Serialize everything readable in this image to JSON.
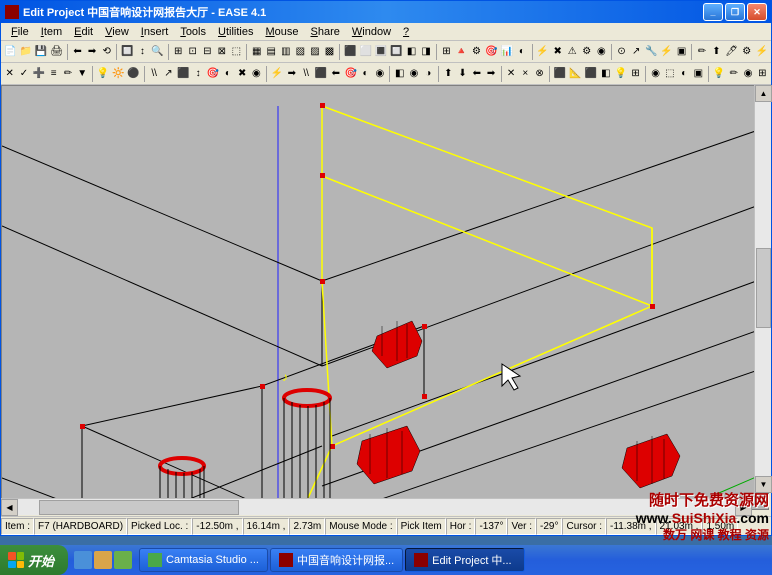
{
  "window": {
    "title": "Edit Project 中国音响设计网报告大厅 - EASE 4.1"
  },
  "menu": {
    "items": [
      "File",
      "Item",
      "Edit",
      "View",
      "Insert",
      "Tools",
      "Utilities",
      "Mouse",
      "Share",
      "Window",
      "?"
    ]
  },
  "status": {
    "item_label": "Item :",
    "item_value": "F7 (HARDBOARD)",
    "picked_label": "Picked Loc. :",
    "picked_x": "-12.50m ,",
    "picked_y": "16.14m ,",
    "picked_z": "2.73m",
    "mouse_mode_label": "Mouse Mode :",
    "mouse_mode_value": "Pick Item",
    "hor_label": "Hor :",
    "hor_value": "-137°",
    "ver_label": "Ver :",
    "ver_value": "-29°",
    "cursor_label": "Cursor :",
    "cursor_x": "-11.38m ,",
    "cursor_y": "21.03m ,",
    "cursor_z": "1.50m"
  },
  "taskbar": {
    "start": "开始",
    "tasks": [
      {
        "label": "Camtasia Studio ...",
        "color": "#4aa84a"
      },
      {
        "label": "中国音响设计网报...",
        "color": "#8b0000"
      },
      {
        "label": "Edit Project 中...",
        "color": "#8b0000"
      }
    ]
  },
  "watermark": {
    "line1": "随时下免费资源网",
    "line2_a": "www.",
    "line2_b": "SuiShiXia",
    "line2_c": ".com",
    "line3": "数万 网课 教程 资源"
  },
  "colors": {
    "viewport_bg": "#b5b5b5",
    "wireframe": "#000000",
    "selected": "#ffff00",
    "speaker": "#dd0000",
    "vertex": "#dd0000",
    "axis": "#2020ff",
    "green_edge": "#00aa00"
  },
  "toolbar_icons_row1": [
    "📄",
    "📁",
    "💾",
    "🖨",
    "|",
    "⬅",
    "➡",
    "⟲",
    "|",
    "🔲",
    "↕",
    "🔍",
    "|",
    "⊞",
    "⊡",
    "⊟",
    "⊠",
    "⬚",
    "|",
    "▦",
    "▤",
    "▥",
    "▧",
    "▨",
    "▩",
    "|",
    "⬛",
    "⬜",
    "🔳",
    "🔲",
    "◧",
    "◨",
    "|",
    "⊞",
    "🔺",
    "⚙",
    "🎯",
    "📊",
    "◐",
    "|",
    "⚡",
    "✖",
    "⚠",
    "⚙",
    "◉",
    "|",
    "⊙",
    "↗",
    "🔧",
    "⚡",
    "▣",
    "|",
    "✏",
    "⬆",
    "🖊",
    "⚙",
    "⚡"
  ],
  "toolbar_icons_row2": [
    "✕",
    "✓",
    "➕",
    "≡",
    "✏",
    "▼",
    "|",
    "💡",
    "🔆",
    "⚫",
    "|",
    "\\\\",
    "↗",
    "⬛",
    "↕",
    "🎯",
    "◐",
    "✖",
    "◉",
    "|",
    "⚡",
    "➡",
    "\\\\",
    "⬛",
    "⬅",
    "🎯",
    "◐",
    "◉",
    "|",
    "◧",
    "◉",
    "◑",
    "|",
    "⬆",
    "⬇",
    "⬅",
    "➡",
    "|",
    "✕",
    "×",
    "⊗",
    "|",
    "⬛",
    "📐",
    "⬛",
    "◧",
    "💡",
    "⊞",
    "|",
    "◉",
    "⬚",
    "◐",
    "▣",
    "|",
    "💡",
    "✏",
    "◉",
    "⊞"
  ]
}
